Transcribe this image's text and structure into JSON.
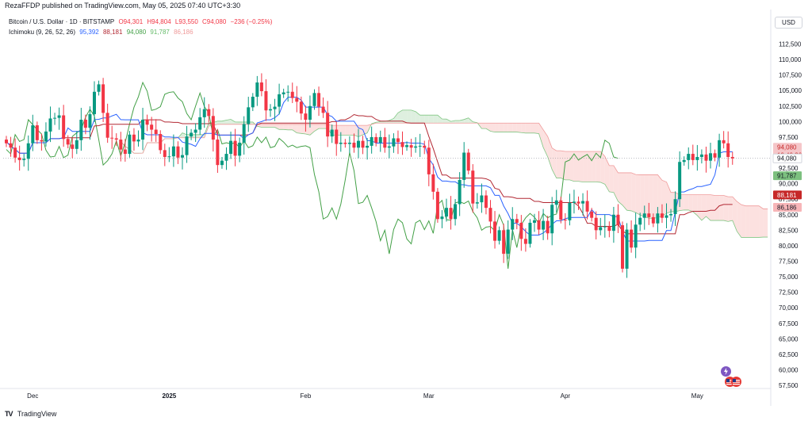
{
  "header": {
    "publish_text": "RezaFFDP published on TradingView.com, May 05, 2025 07:40 UTC+3:30"
  },
  "legend": {
    "symbol": "Bitcoin / U.S. Dollar · 1D · BITSTAMP",
    "open": "O94,301",
    "high": "H94,804",
    "low": "L93,550",
    "close": "C94,080",
    "change": "−236 (−0.25%)",
    "indicator_name": "Ichimoku (9, 26, 52, 26)",
    "conversion": "95,392",
    "base": "88,181",
    "lagging": "94,080",
    "lead_a": "91,787",
    "lead_b": "86,186"
  },
  "currency": "USD",
  "footer": {
    "brand_mark": "TV",
    "brand": "TradingView"
  },
  "colors": {
    "up": "#089981",
    "down": "#f23645",
    "conversion": "#2962ff",
    "base": "#b22833",
    "lagging": "#43a047",
    "cloud_bull": "#d8ecd9",
    "cloud_bear": "#fbdcda",
    "tag_blue": "#2962ff",
    "tag_red": "#c62828",
    "tag_price": "#f5c6c9",
    "tag_green": "#7cc07f",
    "tag_pink": "#f7b5b8"
  },
  "chart_data": {
    "type": "candlestick",
    "title": "Bitcoin / U.S. Dollar · 1D · BITSTAMP",
    "y_ticks": [
      "112,500",
      "110,000",
      "107,500",
      "105,000",
      "102,500",
      "100,000",
      "97,500",
      "95,000",
      "92,500",
      "90,000",
      "87,500",
      "85,000",
      "82,500",
      "80,000",
      "77,500",
      "75,000",
      "72,500",
      "70,000",
      "67,500",
      "65,000",
      "62,500",
      "60,000",
      "57,500"
    ],
    "y_tick_values": [
      112500,
      110000,
      107500,
      105000,
      102500,
      100000,
      97500,
      95000,
      92500,
      90000,
      87500,
      85000,
      82500,
      80000,
      77500,
      75000,
      72500,
      70000,
      67500,
      65000,
      62500,
      60000,
      57500
    ],
    "ylim": [
      57000,
      115500
    ],
    "x_ticks": [
      {
        "label": "Dec",
        "index": 6,
        "strong": false
      },
      {
        "label": "2025",
        "index": 37,
        "strong": true
      },
      {
        "label": "Feb",
        "index": 68,
        "strong": false
      },
      {
        "label": "Mar",
        "index": 96,
        "strong": false
      },
      {
        "label": "Apr",
        "index": 127,
        "strong": false
      },
      {
        "label": "May",
        "index": 157,
        "strong": false
      }
    ],
    "price_tags": [
      {
        "label": "95,392",
        "value": 95392,
        "kind": "conversion"
      },
      {
        "label": "94,080",
        "value": 94080,
        "kind": "price",
        "countdown": "19:49:36"
      },
      {
        "label": "94,080",
        "value": 94080,
        "kind": "lagging"
      },
      {
        "label": "91,787",
        "value": 91787,
        "kind": "lead_a"
      },
      {
        "label": "88,181",
        "value": 88181,
        "kind": "base"
      },
      {
        "label": "86,186",
        "value": 86186,
        "kind": "lead_b"
      }
    ],
    "closes": [
      96500,
      95800,
      94200,
      93800,
      94000,
      96500,
      99400,
      97000,
      96800,
      98400,
      100500,
      100600,
      101000,
      97200,
      96300,
      95600,
      97000,
      100300,
      99000,
      101200,
      104800,
      106000,
      101400,
      97400,
      97300,
      97100,
      95500,
      94800,
      97900,
      96800,
      97100,
      100300,
      99500,
      98700,
      98000,
      95400,
      94300,
      94400,
      96000,
      94200,
      94600,
      97600,
      98200,
      98700,
      100700,
      102000,
      100900,
      97100,
      93000,
      93700,
      94800,
      96900,
      94500,
      96600,
      99600,
      102300,
      104000,
      106300,
      104900,
      101800,
      102000,
      102400,
      104400,
      104700,
      104800,
      103800,
      103200,
      101300,
      100300,
      102500,
      104600,
      102400,
      101400,
      97600,
      98700,
      96400,
      96600,
      96400,
      96600,
      95800,
      96900,
      95800,
      96100,
      97500,
      96600,
      97500,
      95800,
      96000,
      97300,
      96700,
      95900,
      96200,
      95800,
      96000,
      96100,
      95800,
      91500,
      88700,
      84300,
      84700,
      86100,
      84300,
      86700,
      90600,
      95000,
      92100,
      86800,
      87000,
      88100,
      86100,
      83900,
      80800,
      82500,
      78700,
      82600,
      84300,
      83700,
      81100,
      80300,
      83700,
      84100,
      82600,
      84000,
      82000,
      86600,
      87300,
      84200,
      84100,
      86900,
      87100,
      86800,
      87200,
      85500,
      84500,
      82500,
      83000,
      83100,
      82400,
      85000,
      83300,
      76300,
      82600,
      79700,
      83400,
      84500,
      85200,
      84600,
      83600,
      85200,
      84500,
      84900,
      85100,
      87500,
      93500,
      93800,
      94800,
      93800,
      94300,
      94700,
      93700,
      94900,
      94200,
      97000,
      96500,
      94300,
      94080
    ],
    "candle_note": "approximate daily candles, last close 94,080"
  }
}
